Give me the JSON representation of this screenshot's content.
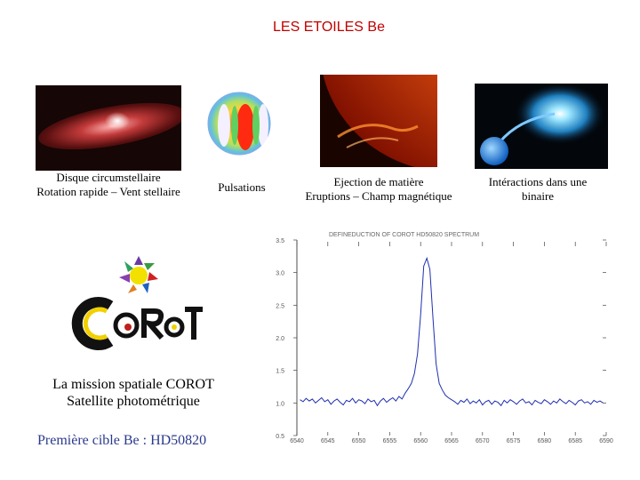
{
  "page_title": "LES ETOILES Be",
  "panels": [
    {
      "line1": "Disque circumstellaire",
      "line2": "Rotation rapide – Vent stellaire"
    },
    {
      "line1": "Pulsations",
      "line2": ""
    },
    {
      "line1": "Ejection de matière",
      "line2": "Eruptions – Champ magnétique"
    },
    {
      "line1": "Intéractions dans une",
      "line2": "binaire"
    }
  ],
  "mission": {
    "line1": "La mission spatiale COROT",
    "line2": "Satellite photométrique",
    "first_target": "Première cible Be : HD50820"
  },
  "colors": {
    "title": "#c00000",
    "first_target": "#2a3a8c",
    "spectrum_line": "#1f2fb0"
  },
  "chart_data": {
    "type": "line",
    "title": "",
    "xlabel": "",
    "ylabel": "",
    "xlim": [
      6540,
      6590
    ],
    "ylim": [
      0.5,
      3.5
    ],
    "xticks": [
      "6540",
      "6545",
      "6550",
      "6555",
      "6560",
      "6565",
      "6570",
      "6575",
      "6580",
      "6585",
      "6590"
    ],
    "yticks": [
      "0.5",
      "1.0",
      "1.5",
      "2.0",
      "2.5",
      "3.0",
      "3.5"
    ],
    "grid": false,
    "series": [
      {
        "x": [
          6540.5,
          6541,
          6541.5,
          6542,
          6542.5,
          6543,
          6543.5,
          6544,
          6544.5,
          6545,
          6545.5,
          6546,
          6546.5,
          6547,
          6547.5,
          6548,
          6548.5,
          6549,
          6549.5,
          6550,
          6550.5,
          6551,
          6551.5,
          6552,
          6552.5,
          6553,
          6553.5,
          6554,
          6554.5,
          6555,
          6555.5,
          6556,
          6556.5,
          6557,
          6557.5,
          6558,
          6558.5,
          6559,
          6559.5,
          6560,
          6560.5,
          6561,
          6561.5,
          6562,
          6562.5,
          6563,
          6563.5,
          6564,
          6564.5,
          6565,
          6565.5,
          6566,
          6566.5,
          6567,
          6567.5,
          6568,
          6568.5,
          6569,
          6569.5,
          6570,
          6570.5,
          6571,
          6571.5,
          6572,
          6572.5,
          6573,
          6573.5,
          6574,
          6574.5,
          6575,
          6575.5,
          6576,
          6576.5,
          6577,
          6577.5,
          6578,
          6578.5,
          6579,
          6579.5,
          6580,
          6580.5,
          6581,
          6581.5,
          6582,
          6582.5,
          6583,
          6583.5,
          6584,
          6584.5,
          6585,
          6585.5,
          6586,
          6586.5,
          6587,
          6587.5,
          6588,
          6588.5,
          6589,
          6589.5
        ],
        "y": [
          1.05,
          1.02,
          1.07,
          1.03,
          1.06,
          1.0,
          1.04,
          1.08,
          1.02,
          1.05,
          0.98,
          1.03,
          1.06,
          1.01,
          0.97,
          1.04,
          1.02,
          1.07,
          1.0,
          1.05,
          1.03,
          0.99,
          1.06,
          1.02,
          1.04,
          0.96,
          1.03,
          1.07,
          1.01,
          1.05,
          1.08,
          1.03,
          1.1,
          1.06,
          1.15,
          1.22,
          1.3,
          1.45,
          1.75,
          2.35,
          3.1,
          3.22,
          3.05,
          2.3,
          1.6,
          1.3,
          1.2,
          1.12,
          1.08,
          1.05,
          1.02,
          0.98,
          1.04,
          1.01,
          1.06,
          0.99,
          1.03,
          1.0,
          1.05,
          0.97,
          1.02,
          1.04,
          0.98,
          1.03,
          1.01,
          0.96,
          1.04,
          1.0,
          1.05,
          1.02,
          0.98,
          1.03,
          1.06,
          1.0,
          1.02,
          0.97,
          1.04,
          1.01,
          0.99,
          1.05,
          1.02,
          0.98,
          1.03,
          1.0,
          1.06,
          1.02,
          0.99,
          1.04,
          1.01,
          0.97,
          1.03,
          1.05,
          1.0,
          1.02,
          0.98,
          1.04,
          1.01,
          1.03,
          1.0
        ]
      }
    ]
  }
}
